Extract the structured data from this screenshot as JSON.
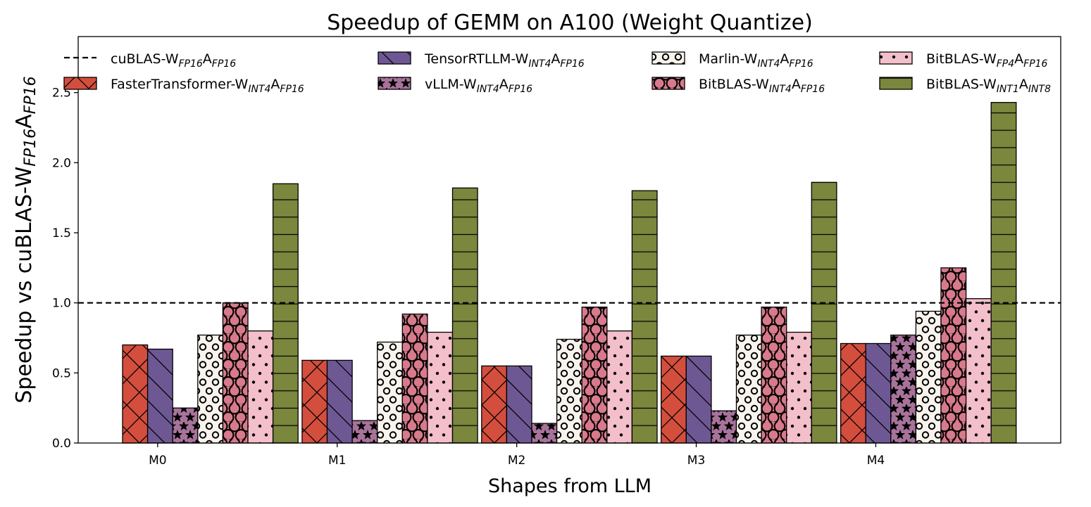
{
  "chart_data": {
    "type": "bar",
    "title": "Speedup of GEMM on A100 (Weight Quantize)",
    "xlabel": "Shapes from LLM",
    "ylabel": {
      "parts": [
        {
          "t": "Speedup vs cuBLAS-W"
        },
        {
          "t": "FP16",
          "sub": true
        },
        {
          "t": "A"
        },
        {
          "t": "FP16",
          "sub": true
        }
      ]
    },
    "categories": [
      "M0",
      "M1",
      "M2",
      "M3",
      "M4"
    ],
    "ylim": [
      0,
      2.9
    ],
    "yticks": [
      "0.0",
      "0.5",
      "1.0",
      "1.5",
      "2.0",
      "2.5"
    ],
    "reference_line": {
      "value": 1.0,
      "style": "dashed",
      "name": {
        "parts": [
          {
            "t": "cuBLAS-W"
          },
          {
            "t": "FP16",
            "sub": true
          },
          {
            "t": "A"
          },
          {
            "t": "FP16",
            "sub": true
          }
        ]
      }
    },
    "series": [
      {
        "name": {
          "parts": [
            {
              "t": "FasterTransformer-W"
            },
            {
              "t": "INT4",
              "sub": true
            },
            {
              "t": "A"
            },
            {
              "t": "FP16",
              "sub": true
            }
          ]
        },
        "values": [
          0.7,
          0.59,
          0.55,
          0.62,
          0.71
        ],
        "color": "#d44e3e",
        "pattern": "cross"
      },
      {
        "name": {
          "parts": [
            {
              "t": "TensorRTLLM-W"
            },
            {
              "t": "INT4",
              "sub": true
            },
            {
              "t": "A"
            },
            {
              "t": "FP16",
              "sub": true
            }
          ]
        },
        "values": [
          0.67,
          0.59,
          0.55,
          0.62,
          0.71
        ],
        "color": "#6e5894",
        "pattern": "backslash"
      },
      {
        "name": {
          "parts": [
            {
              "t": "vLLM-W"
            },
            {
              "t": "INT4",
              "sub": true
            },
            {
              "t": "A"
            },
            {
              "t": "FP16",
              "sub": true
            }
          ]
        },
        "values": [
          0.25,
          0.16,
          0.14,
          0.23,
          0.77
        ],
        "color": "#a8739b",
        "pattern": "star"
      },
      {
        "name": {
          "parts": [
            {
              "t": "Marlin-W"
            },
            {
              "t": "INT4",
              "sub": true
            },
            {
              "t": "A"
            },
            {
              "t": "FP16",
              "sub": true
            }
          ]
        },
        "values": [
          0.77,
          0.72,
          0.74,
          0.77,
          0.94
        ],
        "color": "#f8f4ed",
        "pattern": "smallcircle"
      },
      {
        "name": {
          "parts": [
            {
              "t": "BitBLAS-W"
            },
            {
              "t": "INT4",
              "sub": true
            },
            {
              "t": "A"
            },
            {
              "t": "FP16",
              "sub": true
            }
          ]
        },
        "values": [
          1.0,
          0.92,
          0.97,
          0.97,
          1.25
        ],
        "color": "#d97a8c",
        "pattern": "bigcircle"
      },
      {
        "name": {
          "parts": [
            {
              "t": "BitBLAS-W"
            },
            {
              "t": "FP4",
              "sub": true
            },
            {
              "t": "A"
            },
            {
              "t": "FP16",
              "sub": true
            }
          ]
        },
        "values": [
          0.8,
          0.79,
          0.8,
          0.79,
          1.03
        ],
        "color": "#f3bfca",
        "pattern": "dot"
      },
      {
        "name": {
          "parts": [
            {
              "t": "BitBLAS-W"
            },
            {
              "t": "INT1",
              "sub": true
            },
            {
              "t": "A"
            },
            {
              "t": "INT8",
              "sub": true
            }
          ]
        },
        "values": [
          1.85,
          1.82,
          1.8,
          1.86,
          2.43
        ],
        "color": "#7a873c",
        "pattern": "hline"
      }
    ],
    "legend": {
      "placement": "top",
      "columns": 4
    },
    "grid": false
  }
}
